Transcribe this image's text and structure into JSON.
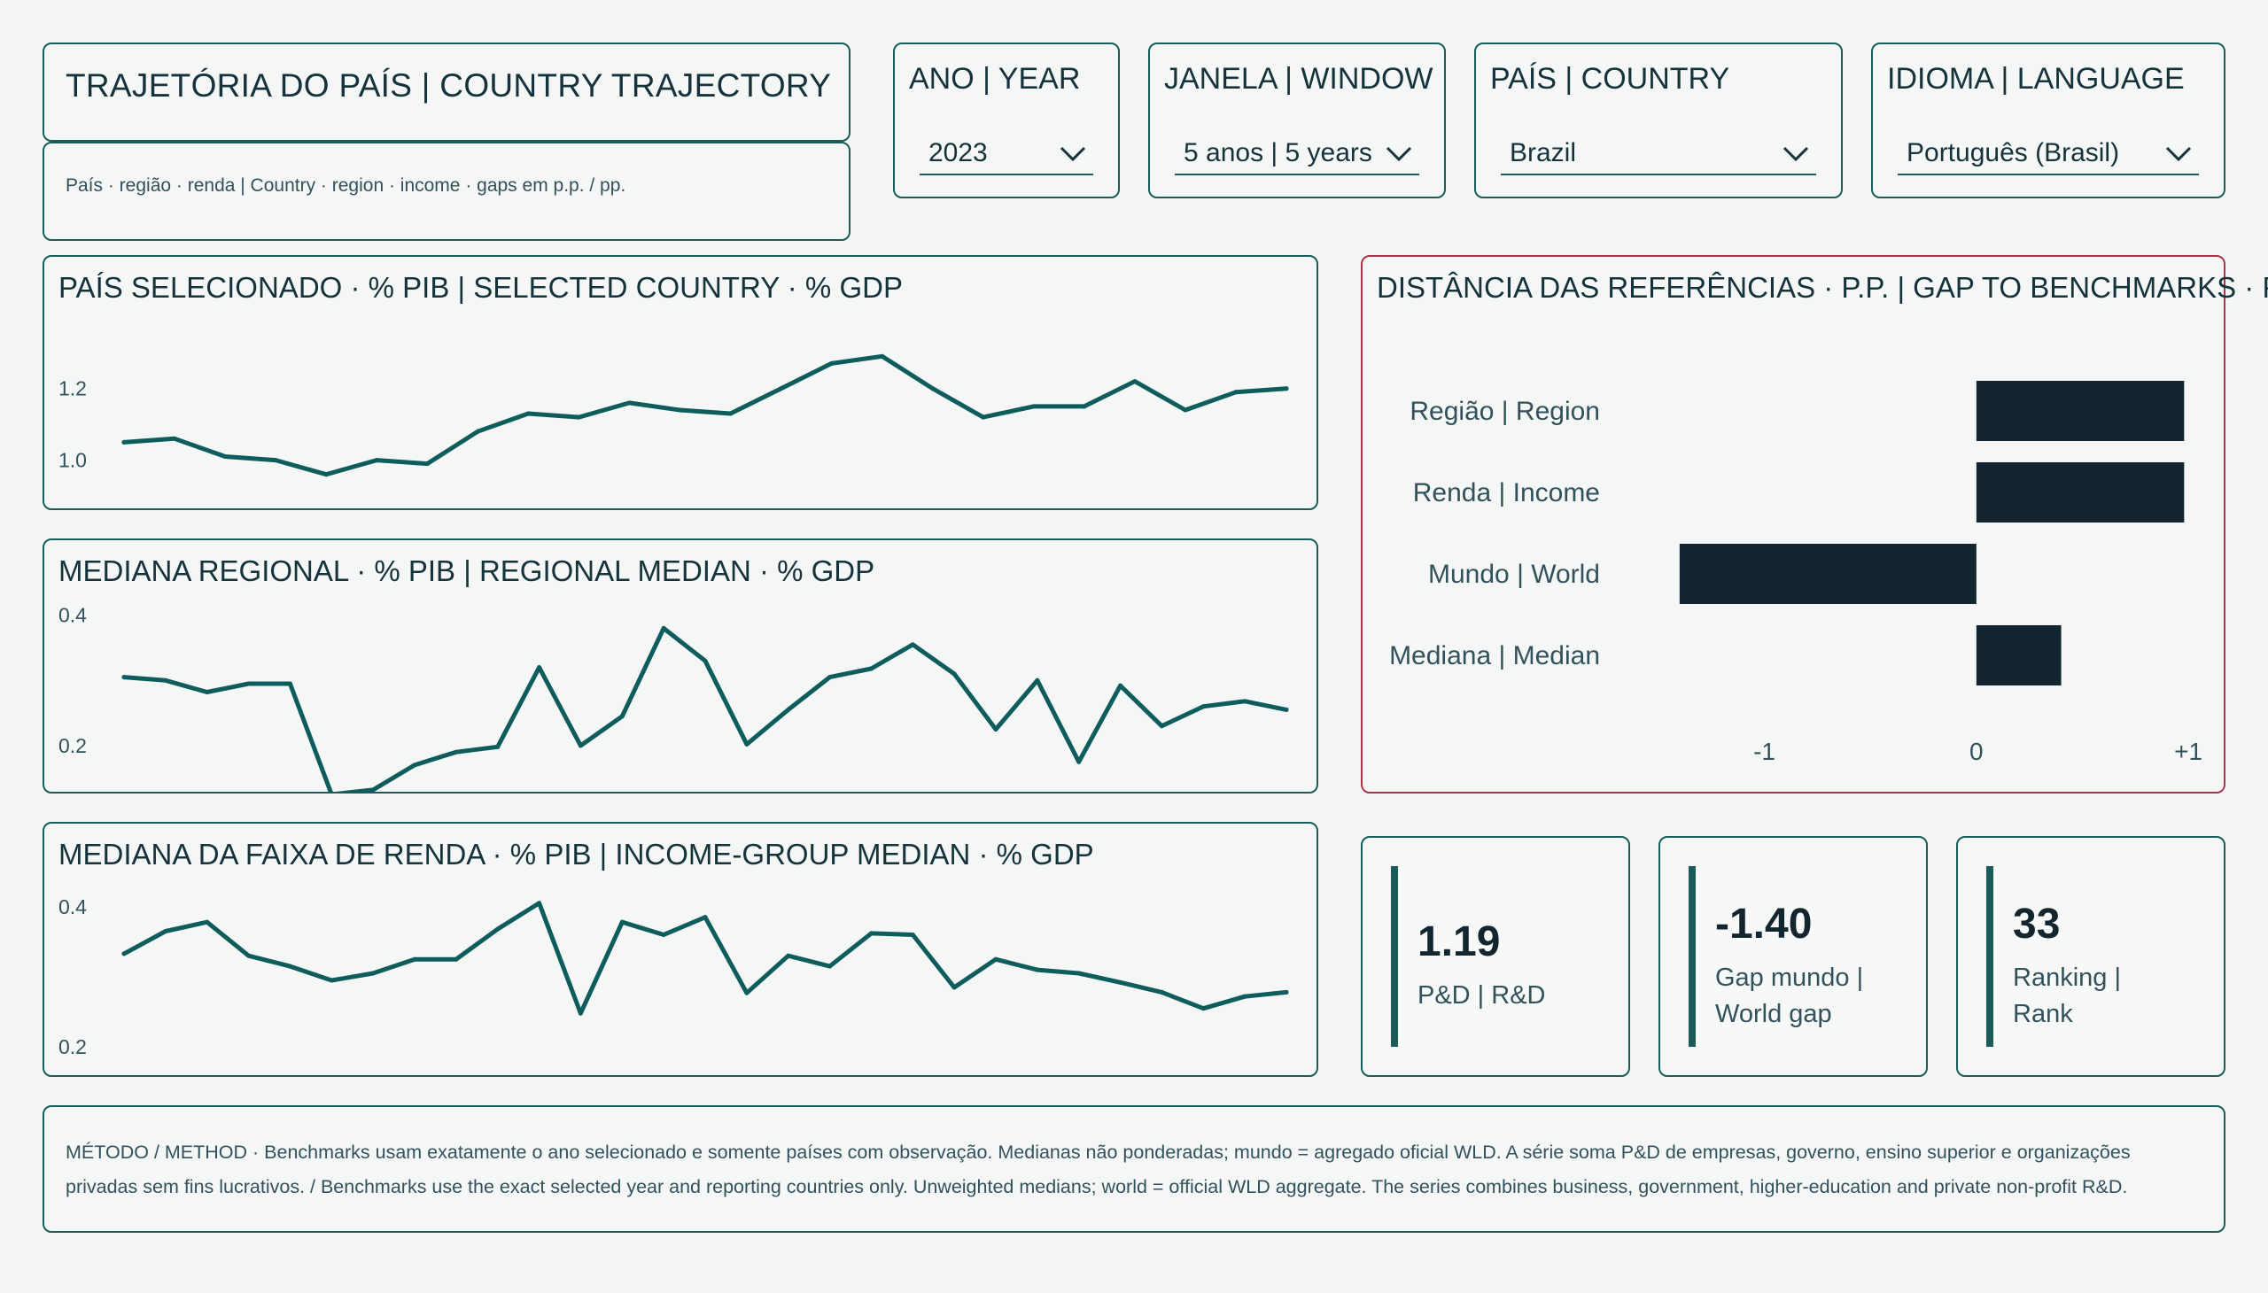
{
  "header": {
    "title": "TRAJETÓRIA DO PAÍS | COUNTRY TRAJECTORY",
    "subtitle": "País · região · renda | Country · region · income · gaps em p.p. / pp."
  },
  "slicers": {
    "year": {
      "label": "ANO | YEAR",
      "value": "2023"
    },
    "window": {
      "label": "JANELA | WINDOW",
      "value": "5 anos | 5 years"
    },
    "country": {
      "label": "PAÍS | COUNTRY",
      "value": "Brazil"
    },
    "language": {
      "label": "IDIOMA | LANGUAGE",
      "value": "Português (Brasil)"
    }
  },
  "colors": {
    "accent": "#1b5c5a",
    "line": "#0f5c5c",
    "bar": "#13262f",
    "alt_border": "#a8354b",
    "background": "#f3f6f5"
  },
  "icons": {
    "dropdown": "chevron-down-icon"
  },
  "chart_data": [
    {
      "type": "line",
      "title": "PAÍS SELECIONADO · % PIB | SELECTED COUNTRY · % GDP",
      "ylim": [
        0.9,
        1.37
      ],
      "yticks": [
        "1.0",
        "1.2"
      ],
      "ytick_values": [
        1.0,
        1.2
      ],
      "values": [
        1.05,
        1.06,
        1.01,
        1.0,
        0.96,
        1.0,
        0.99,
        1.08,
        1.13,
        1.12,
        1.16,
        1.14,
        1.13,
        1.2,
        1.27,
        1.29,
        1.2,
        1.12,
        1.15,
        1.15,
        1.22,
        1.14,
        1.19,
        1.2
      ]
    },
    {
      "type": "line",
      "title": "MEDIANA REGIONAL · % PIB | REGIONAL MEDIAN · % GDP",
      "ylim": [
        0.14,
        0.42
      ],
      "yticks": [
        "0.2",
        "0.4"
      ],
      "ytick_values": [
        0.2,
        0.4
      ],
      "values": [
        0.305,
        0.3,
        0.282,
        0.295,
        0.295,
        0.125,
        0.132,
        0.17,
        0.19,
        0.198,
        0.32,
        0.2,
        0.245,
        0.38,
        0.33,
        0.202,
        0.255,
        0.305,
        0.318,
        0.355,
        0.31,
        0.225,
        0.3,
        0.175,
        0.292,
        0.23,
        0.26,
        0.268,
        0.255
      ]
    },
    {
      "type": "line",
      "title": "MEDIANA DA FAIXA DE RENDA · % PIB | INCOME-GROUP MEDIAN · % GDP",
      "ylim": [
        0.17,
        0.43
      ],
      "yticks": [
        "0.2",
        "0.4"
      ],
      "ytick_values": [
        0.2,
        0.4
      ],
      "values": [
        0.333,
        0.365,
        0.378,
        0.33,
        0.315,
        0.295,
        0.305,
        0.325,
        0.325,
        0.368,
        0.405,
        0.248,
        0.378,
        0.36,
        0.385,
        0.277,
        0.33,
        0.315,
        0.362,
        0.36,
        0.285,
        0.325,
        0.31,
        0.305,
        0.292,
        0.278,
        0.255,
        0.272,
        0.278
      ]
    },
    {
      "type": "bar",
      "orientation": "horizontal",
      "title": "DISTÂNCIA DAS REFERÊNCIAS · P.P. | GAP TO BENCHMARKS · PP",
      "categories": [
        "Região | Region",
        "Renda | Income",
        "Mundo | World",
        "Mediana | Median"
      ],
      "values": [
        0.98,
        0.98,
        -1.4,
        0.4
      ],
      "xlim": [
        -1.6,
        1.15
      ],
      "xticks": [
        "-1",
        "0",
        "+1"
      ],
      "xtick_values": [
        -1,
        0,
        1
      ]
    }
  ],
  "kpis": [
    {
      "value": "1.19",
      "label": "P&D | R&D"
    },
    {
      "value": "-1.40",
      "label": "Gap mundo | World gap"
    },
    {
      "value": "33",
      "label": "Ranking | Rank"
    }
  ],
  "footer": {
    "text": "MÉTODO / METHOD · Benchmarks usam exatamente o ano selecionado e somente países com observação. Medianas não ponderadas; mundo = agregado oficial WLD. A série soma P&D de empresas, governo, ensino superior e organizações privadas sem fins lucrativos. / Benchmarks use the exact selected year and reporting countries only. Unweighted medians; world = official WLD aggregate. The series combines business, government, higher-education and private non-profit R&D."
  }
}
